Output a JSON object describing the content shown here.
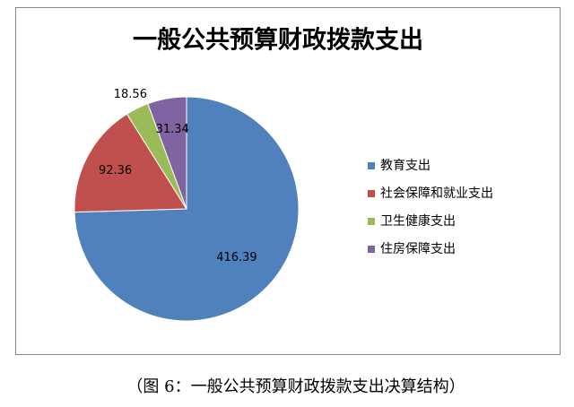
{
  "chart_data": {
    "type": "pie",
    "title": "一般公共预算财政拨款支出",
    "categories": [
      "教育支出",
      "社会保障和就业支出",
      "卫生健康支出",
      "住房保障支出"
    ],
    "values": [
      416.39,
      92.36,
      18.56,
      31.34
    ],
    "colors": [
      "#4f81bd",
      "#c0504d",
      "#9bbb59",
      "#8064a2"
    ],
    "legend": "right"
  },
  "caption": "（图 6：一般公共预算财政拨款支出决算结构）"
}
